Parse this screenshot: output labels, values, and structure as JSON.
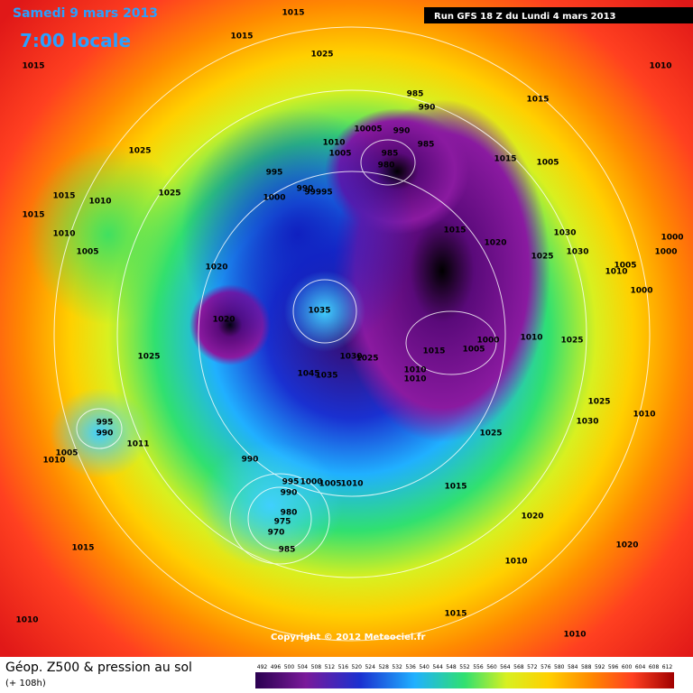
{
  "header": {
    "date": "Samedi 9 mars 2013",
    "time": "7:00 locale",
    "run": "Run GFS 18 Z du Lundi 4 mars 2013"
  },
  "footer": {
    "copyright": "Copyright © 2012 Meteociel.fr",
    "title": "Géop. Z500 & pression au sol",
    "lead": "(+ 108h)"
  },
  "legend": {
    "values": [
      492,
      496,
      500,
      504,
      508,
      512,
      516,
      520,
      524,
      528,
      532,
      536,
      540,
      544,
      548,
      552,
      556,
      560,
      564,
      568,
      572,
      576,
      580,
      584,
      588,
      592,
      596,
      600,
      604,
      608,
      612
    ]
  },
  "isobars": [
    "1015",
    "1015",
    "1025",
    "1015",
    "1010",
    "985",
    "990",
    "1015",
    "10005",
    "990",
    "1010",
    "1005",
    "985",
    "985",
    "980",
    "1025",
    "1015",
    "1005",
    "995",
    "1015",
    "1010",
    "1025",
    "990",
    "99995",
    "1000",
    "1015",
    "1010",
    "1015",
    "1020",
    "1030",
    "1000",
    "1005",
    "1025",
    "1030",
    "1000",
    "1020",
    "1005",
    "1010",
    "1000",
    "1020",
    "1035",
    "1000",
    "1005",
    "1015",
    "1010",
    "1025",
    "1030",
    "1025",
    "1025",
    "1045",
    "1035",
    "1010",
    "1010",
    "1025",
    "1010",
    "1030",
    "995",
    "990",
    "1025",
    "1005",
    "1011",
    "1010",
    "990",
    "995",
    "1000",
    "1005",
    "1010",
    "990",
    "1015",
    "980",
    "975",
    "970",
    "985",
    "1020",
    "1015",
    "1020",
    "1010",
    "1015",
    "1010",
    "1010"
  ]
}
